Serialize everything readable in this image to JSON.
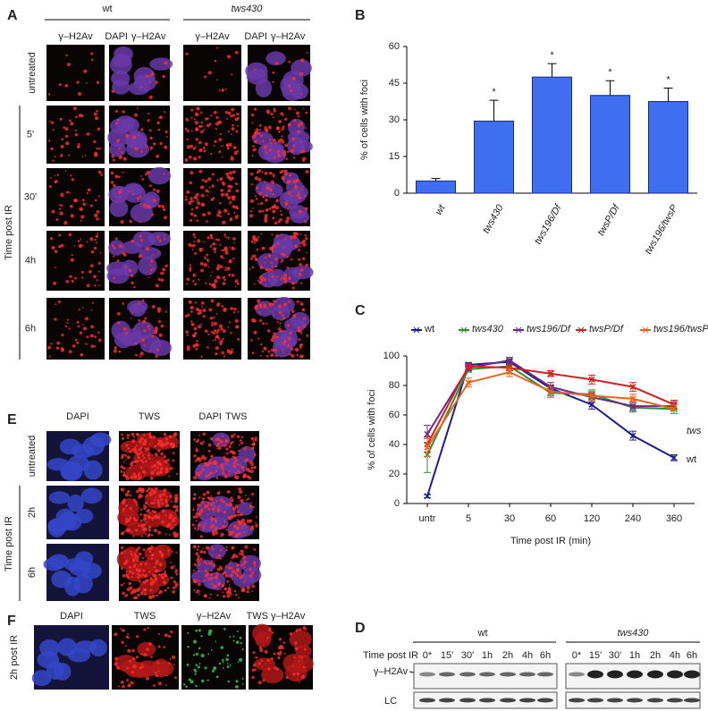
{
  "panel_labels": [
    "A",
    "B",
    "C",
    "D",
    "E",
    "F"
  ],
  "panel_a": {
    "groups": [
      "wt",
      "tws430"
    ],
    "stain_dapi": "DAPI",
    "stain_h2av": "γ–H2Av",
    "rows": [
      "untreated",
      "5'",
      "30'",
      "4h",
      "6h"
    ],
    "side_label": "Time post IR"
  },
  "panel_e": {
    "stains": [
      "DAPI",
      "TWS"
    ],
    "rows": [
      "untreated",
      "2h",
      "6h"
    ],
    "side_label": "Time post IR"
  },
  "panel_f": {
    "stains": [
      "DAPI",
      "TWS",
      "γ–H2Av"
    ],
    "side_label": "2h post IR"
  },
  "panel_d": {
    "groups": [
      "wt",
      "tws430"
    ],
    "row_label": "Time post IR",
    "lanes": [
      "0*",
      "15'",
      "30'",
      "1h",
      "2h",
      "4h",
      "6h"
    ],
    "bands": [
      "γ–H2Av",
      "LC"
    ]
  },
  "chart_data": [
    {
      "type": "bar",
      "y_label": "% of cells with foci",
      "categories": [
        "wt",
        "tws430",
        "tws196/Df",
        "twsP/Df",
        "tws196/twsP"
      ],
      "values": [
        5,
        29.5,
        47.5,
        40,
        37.5
      ],
      "errors": [
        1,
        8.5,
        5.5,
        6,
        5.5
      ],
      "markers": [
        null,
        "*",
        "*",
        "*",
        "*"
      ],
      "color": "#3f6ef0",
      "ylim": [
        0,
        60
      ],
      "yticks": [
        0,
        15,
        30,
        45,
        60
      ]
    },
    {
      "type": "line",
      "x_label": "Time post IR (min)",
      "y_label": "% of cells with foci",
      "categories": [
        "untr",
        "5",
        "30",
        "60",
        "120",
        "240",
        "360"
      ],
      "series": [
        {
          "name": "wt",
          "color": "#1c1c8c",
          "values": [
            5,
            94,
            96,
            78,
            67,
            46,
            31
          ],
          "errors": [
            1,
            1.5,
            1.5,
            2,
            3,
            3,
            2
          ]
        },
        {
          "name": "tws430",
          "color": "#2f8f2f",
          "values": [
            33,
            91,
            93,
            75,
            74,
            65,
            64
          ],
          "errors": [
            12,
            2,
            2,
            3,
            3,
            3,
            3
          ]
        },
        {
          "name": "tws196/Df",
          "color": "#6a2a8a",
          "values": [
            47,
            92,
            97,
            79,
            72,
            66,
            66
          ],
          "errors": [
            6,
            2,
            2,
            3,
            3,
            3,
            3
          ]
        },
        {
          "name": "twsP/Df",
          "color": "#d42020",
          "values": [
            40,
            93,
            92,
            88,
            84,
            79,
            67
          ],
          "errors": [
            5,
            2,
            2,
            2,
            3,
            3,
            3
          ]
        },
        {
          "name": "tws196/twsP",
          "color": "#e8641e",
          "values": [
            38,
            82,
            89,
            76,
            73,
            71,
            64
          ],
          "errors": [
            6,
            3,
            3,
            3,
            3,
            3,
            3
          ]
        }
      ],
      "annotations": [
        "tws",
        "wt"
      ],
      "ylim": [
        0,
        100
      ],
      "yticks": [
        0,
        20,
        40,
        60,
        80,
        100
      ]
    }
  ]
}
